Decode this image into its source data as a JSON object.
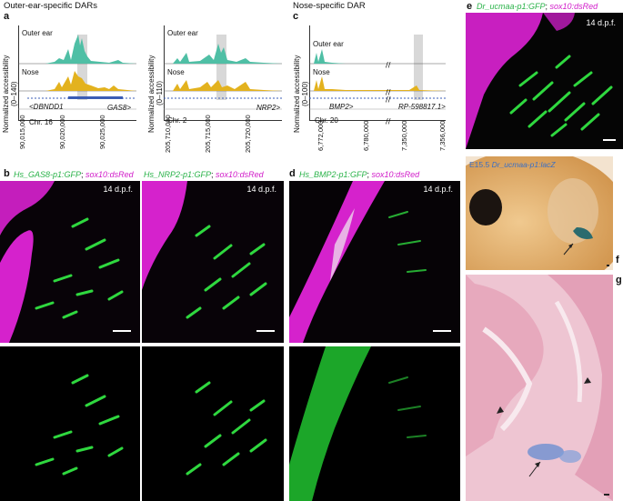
{
  "headings": {
    "a": "Outer-ear-specific DARs",
    "c": "Nose-specific DAR"
  },
  "panel_labels": [
    "a",
    "b",
    "c",
    "d",
    "e",
    "f",
    "g"
  ],
  "colors": {
    "ear": "#4fbfa5",
    "nose": "#e3b21e",
    "gfp": "#2bb34a",
    "dsred": "#e020d6",
    "lacz": "#3a6fc4"
  },
  "tracks": [
    {
      "id": "a1",
      "ylabel": "Normalized accessibility",
      "yrange": "(0–140)",
      "ear_label": "Outer ear",
      "nose_label": "Nose",
      "gene_left": "<DBNDD1",
      "gene_right": "GAS8>",
      "chrom": "Chr. 16",
      "ticks": [
        "90,015,000",
        "90,020,000",
        "90,025,000"
      ]
    },
    {
      "id": "a2",
      "ylabel": "Normalized accessibility",
      "yrange": "(0–110)",
      "ear_label": "Outer ear",
      "nose_label": "Nose",
      "gene_left": "",
      "gene_right": "NRP2>",
      "chrom": "Chr. 2",
      "ticks": [
        "205,710,000",
        "205,715,000",
        "205,720,000"
      ]
    },
    {
      "id": "c",
      "ylabel": "Normalized accessibility",
      "yrange": "(0–100)",
      "ear_label": "Outer ear",
      "nose_label": "Nose",
      "gene_left": "BMP2>",
      "gene_right": "RP-598817.1>",
      "chrom": "Chr. 20",
      "ticks": [
        "6,772,000",
        "6,780,000",
        "7,350,000",
        "7,356,000"
      ]
    }
  ],
  "micro": {
    "b1": {
      "gene": "Hs_GAS8-p1:GFP",
      "reporter": "sox10:dsRed",
      "stage": "14 d.p.f."
    },
    "b2": {
      "gene": "Hs_NRP2-p1:GFP",
      "reporter": "sox10:dsRed",
      "stage": "14 d.p.f."
    },
    "d": {
      "gene": "Hs_BMP2-p1:GFP",
      "reporter": "sox10:dsRed",
      "stage": "14 d.p.f."
    },
    "e": {
      "gene": "Dr_ucmaa-p1:GFP",
      "reporter": "sox10:dsRed",
      "stage": "14 d.p.f."
    },
    "f": {
      "stage": "E15.5",
      "gene": "Dr_ucmaa-p1:lacZ"
    }
  }
}
